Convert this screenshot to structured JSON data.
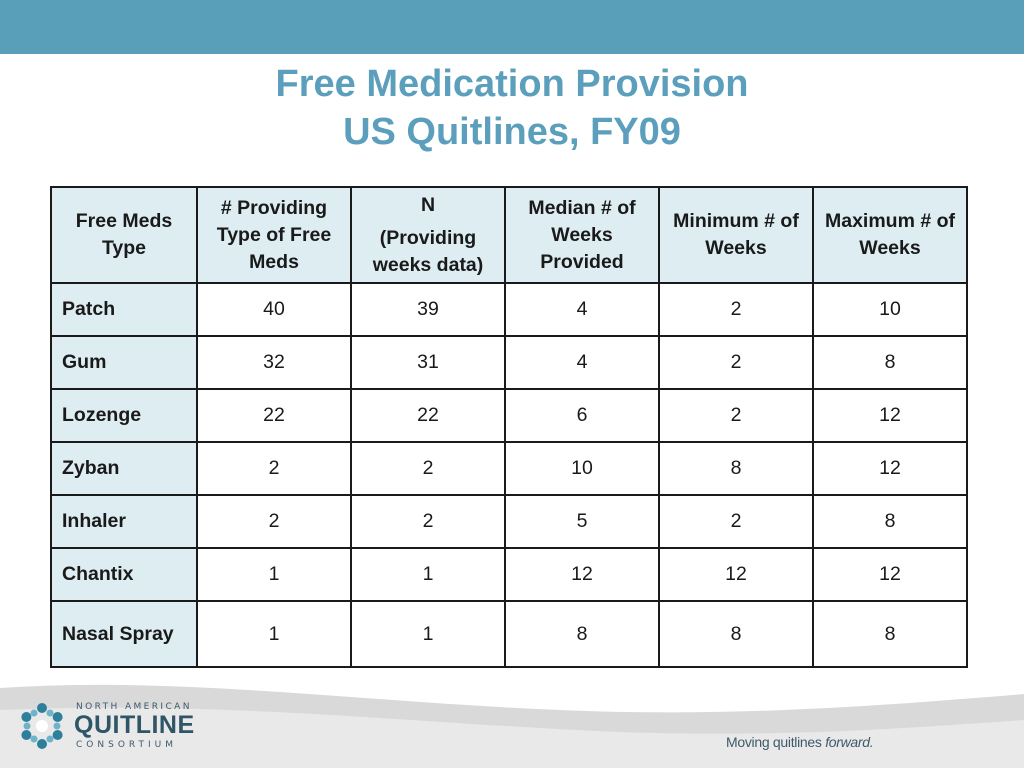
{
  "colors": {
    "accent": "#5a9fba",
    "title": "#5b9fbd",
    "header_fill": "#ddedf2",
    "footer_wave": "#d9d9d9"
  },
  "title": {
    "line1": "Free Medication Provision",
    "line2": "US Quitlines, FY09"
  },
  "table": {
    "headers": [
      "Free Meds Type",
      "# Providing Type of Free Meds",
      {
        "line1": "N",
        "line2": "(Providing weeks data)"
      },
      "Median # of Weeks Provided",
      "Minimum # of Weeks",
      "Maximum # of Weeks"
    ],
    "rows": [
      {
        "type": "Patch",
        "cells": [
          "40",
          "39",
          "4",
          "2",
          "10"
        ]
      },
      {
        "type": "Gum",
        "cells": [
          "32",
          "31",
          "4",
          "2",
          "8"
        ]
      },
      {
        "type": "Lozenge",
        "cells": [
          "22",
          "22",
          "6",
          "2",
          "12"
        ]
      },
      {
        "type": "Zyban",
        "cells": [
          "2",
          "2",
          "10",
          "8",
          "12"
        ]
      },
      {
        "type": "Inhaler",
        "cells": [
          "2",
          "2",
          "5",
          "2",
          "8"
        ]
      },
      {
        "type": "Chantix",
        "cells": [
          "1",
          "1",
          "12",
          "12",
          "12"
        ]
      },
      {
        "type": "Nasal Spray",
        "cells": [
          "1",
          "1",
          "8",
          "8",
          "8"
        ]
      }
    ]
  },
  "footer": {
    "logo_icon": "quitline-snowflake-logo",
    "org_top": "NORTH AMERICAN",
    "org_mid": "QUITLINE",
    "org_bot": "CONSORTIUM",
    "tagline_plain": "Moving quitlines ",
    "tagline_em": "forward."
  }
}
